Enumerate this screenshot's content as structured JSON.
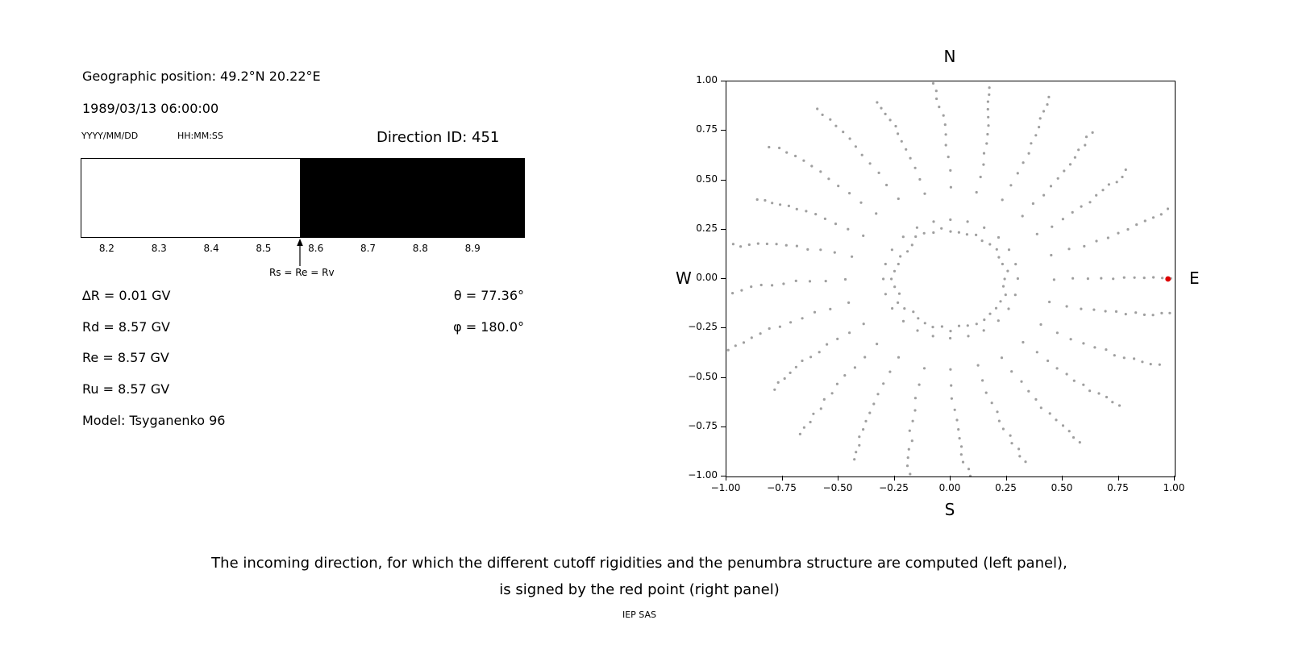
{
  "left_panel": {
    "geo_position": "Geographic position: 49.2°N 20.22°E",
    "datetime": "1989/03/13 06:00:00",
    "date_format": "YYYY/MM/DD",
    "time_format": "HH:MM:SS",
    "direction_id": "Direction ID: 451",
    "rigidity_rows": [
      "∆R = 0.01 GV",
      "Rd = 8.57 GV",
      "Re = 8.57 GV",
      "Ru = 8.57 GV"
    ],
    "angle_rows": [
      "θ = 77.36°",
      "φ = 180.0°"
    ],
    "model": "Model: Tsyganenko 96"
  },
  "caption": {
    "line1": "The incoming direction, for which the different cutoff rigidities and the penumbra structure are computed (left panel),",
    "line2": "is signed by the red point (right panel)",
    "credit": "IEP SAS"
  },
  "chart_data": [
    {
      "type": "bar",
      "name": "penumbra-structure",
      "x_range": [
        8.15,
        9.0
      ],
      "xticks": [
        8.2,
        8.3,
        8.4,
        8.5,
        8.6,
        8.7,
        8.8,
        8.9
      ],
      "segments": [
        {
          "from": 8.15,
          "to": 8.57,
          "color": "#ffffff"
        },
        {
          "from": 8.57,
          "to": 9.0,
          "color": "#000000"
        }
      ],
      "annotation": {
        "x": 8.57,
        "label": "Rs = Re = Rv"
      }
    },
    {
      "type": "scatter",
      "name": "incoming-direction-map",
      "xlim": [
        -1,
        1
      ],
      "ylim": [
        -1,
        1
      ],
      "xticks": [
        -1,
        -0.75,
        -0.5,
        -0.25,
        0,
        0.25,
        0.5,
        0.75,
        1
      ],
      "yticks": [
        -1,
        -0.75,
        -0.5,
        -0.25,
        0,
        0.25,
        0.5,
        0.75,
        1
      ],
      "compass": {
        "top": "N",
        "bottom": "S",
        "left": "W",
        "right": "E"
      },
      "point_color": "#8f8f8f",
      "red_point": {
        "x": 0.97,
        "y": 0.0,
        "color": "#dd0000"
      },
      "inner_ring": {
        "radius": 0.25,
        "count": 40
      },
      "spokes": {
        "count": 24,
        "r_min": 0.3,
        "r_max_min": 0.95,
        "r_max_max": 1.06,
        "points_per_spoke": 13,
        "spacing_exponent": 0.6,
        "curvature_deg": 5
      }
    }
  ]
}
